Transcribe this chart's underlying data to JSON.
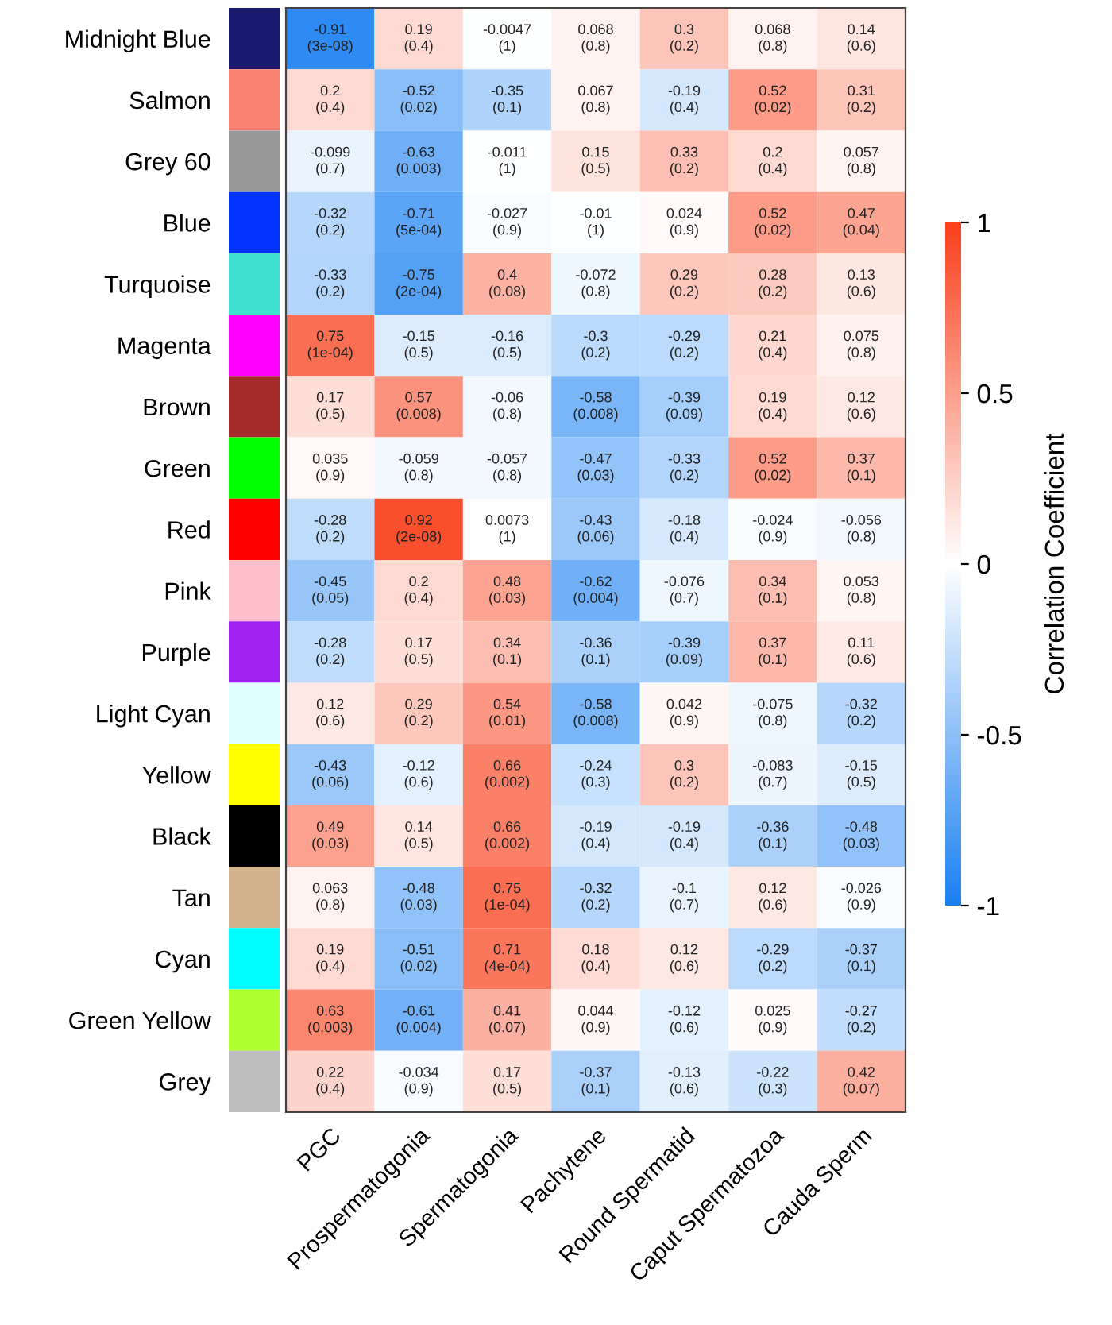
{
  "chart_data": {
    "type": "heatmap",
    "categories": [
      "PGC",
      "Prospermatogonia",
      "Spermatogonia",
      "Pachytene",
      "Round Spermatid",
      "Caput Spermatozoa",
      "Cauda Sperm"
    ],
    "y_categories": [
      "Midnight Blue",
      "Salmon",
      "Grey 60",
      "Blue",
      "Turquoise",
      "Magenta",
      "Brown",
      "Green",
      "Red",
      "Pink",
      "Purple",
      "Light Cyan",
      "Yellow",
      "Black",
      "Tan",
      "Cyan",
      "Green Yellow",
      "Grey"
    ],
    "cells": [
      [
        -0.91,
        0.19,
        -0.0047,
        0.068,
        0.3,
        0.068,
        0.14
      ],
      [
        0.2,
        -0.52,
        -0.35,
        0.067,
        -0.19,
        0.52,
        0.31
      ],
      [
        -0.099,
        -0.63,
        -0.011,
        0.15,
        0.33,
        0.2,
        0.057
      ],
      [
        -0.32,
        -0.71,
        -0.027,
        -0.01,
        0.024,
        0.52,
        0.47
      ],
      [
        -0.33,
        -0.75,
        0.4,
        -0.072,
        0.29,
        0.28,
        0.13
      ],
      [
        0.75,
        -0.15,
        -0.16,
        -0.3,
        -0.29,
        0.21,
        0.075
      ],
      [
        0.17,
        0.57,
        -0.06,
        -0.58,
        -0.39,
        0.19,
        0.12
      ],
      [
        0.035,
        -0.059,
        -0.057,
        -0.47,
        -0.33,
        0.52,
        0.37
      ],
      [
        -0.28,
        0.92,
        0.0073,
        -0.43,
        -0.18,
        -0.024,
        -0.056
      ],
      [
        -0.45,
        0.2,
        0.48,
        -0.62,
        -0.076,
        0.34,
        0.053
      ],
      [
        -0.28,
        0.17,
        0.34,
        -0.36,
        -0.39,
        0.37,
        0.11
      ],
      [
        0.12,
        0.29,
        0.54,
        -0.58,
        0.042,
        -0.075,
        -0.32
      ],
      [
        -0.43,
        -0.12,
        0.66,
        -0.24,
        0.3,
        -0.083,
        -0.15
      ],
      [
        0.49,
        0.14,
        0.66,
        -0.19,
        -0.19,
        -0.36,
        -0.48
      ],
      [
        0.063,
        -0.48,
        0.75,
        -0.32,
        -0.1,
        0.12,
        -0.026
      ],
      [
        0.19,
        -0.51,
        0.71,
        0.18,
        0.12,
        -0.29,
        -0.37
      ],
      [
        0.63,
        -0.61,
        0.41,
        0.044,
        -0.12,
        0.025,
        -0.27
      ],
      [
        0.22,
        -0.034,
        0.17,
        -0.37,
        -0.13,
        -0.22,
        0.42
      ]
    ],
    "cell_labels": [
      [
        "-0.91\n(3e-08)",
        "0.19\n(0.4)",
        "-0.0047\n(1)",
        "0.068\n(0.8)",
        "0.3\n(0.2)",
        "0.068\n(0.8)",
        "0.14\n(0.6)"
      ],
      [
        "0.2\n(0.4)",
        "-0.52\n(0.02)",
        "-0.35\n(0.1)",
        "0.067\n(0.8)",
        "-0.19\n(0.4)",
        "0.52\n(0.02)",
        "0.31\n(0.2)"
      ],
      [
        "-0.099\n(0.7)",
        "-0.63\n(0.003)",
        "-0.011\n(1)",
        "0.15\n(0.5)",
        "0.33\n(0.2)",
        "0.2\n(0.4)",
        "0.057\n(0.8)"
      ],
      [
        "-0.32\n(0.2)",
        "-0.71\n(5e-04)",
        "-0.027\n(0.9)",
        "-0.01\n(1)",
        "0.024\n(0.9)",
        "0.52\n(0.02)",
        "0.47\n(0.04)"
      ],
      [
        "-0.33\n(0.2)",
        "-0.75\n(2e-04)",
        "0.4\n(0.08)",
        "-0.072\n(0.8)",
        "0.29\n(0.2)",
        "0.28\n(0.2)",
        "0.13\n(0.6)"
      ],
      [
        "0.75\n(1e-04)",
        "-0.15\n(0.5)",
        "-0.16\n(0.5)",
        "-0.3\n(0.2)",
        "-0.29\n(0.2)",
        "0.21\n(0.4)",
        "0.075\n(0.8)"
      ],
      [
        "0.17\n(0.5)",
        "0.57\n(0.008)",
        "-0.06\n(0.8)",
        "-0.58\n(0.008)",
        "-0.39\n(0.09)",
        "0.19\n(0.4)",
        "0.12\n(0.6)"
      ],
      [
        "0.035\n(0.9)",
        "-0.059\n(0.8)",
        "-0.057\n(0.8)",
        "-0.47\n(0.03)",
        "-0.33\n(0.2)",
        "0.52\n(0.02)",
        "0.37\n(0.1)"
      ],
      [
        "-0.28\n(0.2)",
        "0.92\n(2e-08)",
        "0.0073\n(1)",
        "-0.43\n(0.06)",
        "-0.18\n(0.4)",
        "-0.024\n(0.9)",
        "-0.056\n(0.8)"
      ],
      [
        "-0.45\n(0.05)",
        "0.2\n(0.4)",
        "0.48\n(0.03)",
        "-0.62\n(0.004)",
        "-0.076\n(0.7)",
        "0.34\n(0.1)",
        "0.053\n(0.8)"
      ],
      [
        "-0.28\n(0.2)",
        "0.17\n(0.5)",
        "0.34\n(0.1)",
        "-0.36\n(0.1)",
        "-0.39\n(0.09)",
        "0.37\n(0.1)",
        "0.11\n(0.6)"
      ],
      [
        "0.12\n(0.6)",
        "0.29\n(0.2)",
        "0.54\n(0.01)",
        "-0.58\n(0.008)",
        "0.042\n(0.9)",
        "-0.075\n(0.8)",
        "-0.32\n(0.2)"
      ],
      [
        "-0.43\n(0.06)",
        "-0.12\n(0.6)",
        "0.66\n(0.002)",
        "-0.24\n(0.3)",
        "0.3\n(0.2)",
        "-0.083\n(0.7)",
        "-0.15\n(0.5)"
      ],
      [
        "0.49\n(0.03)",
        "0.14\n(0.5)",
        "0.66\n(0.002)",
        "-0.19\n(0.4)",
        "-0.19\n(0.4)",
        "-0.36\n(0.1)",
        "-0.48\n(0.03)"
      ],
      [
        "0.063\n(0.8)",
        "-0.48\n(0.03)",
        "0.75\n(1e-04)",
        "-0.32\n(0.2)",
        "-0.1\n(0.7)",
        "0.12\n(0.6)",
        "-0.026\n(0.9)"
      ],
      [
        "0.19\n(0.4)",
        "-0.51\n(0.02)",
        "0.71\n(4e-04)",
        "0.18\n(0.4)",
        "0.12\n(0.6)",
        "-0.29\n(0.2)",
        "-0.37\n(0.1)"
      ],
      [
        "0.63\n(0.003)",
        "-0.61\n(0.004)",
        "0.41\n(0.07)",
        "0.044\n(0.9)",
        "-0.12\n(0.6)",
        "0.025\n(0.9)",
        "-0.27\n(0.2)"
      ],
      [
        "0.22\n(0.4)",
        "-0.034\n(0.9)",
        "0.17\n(0.5)",
        "-0.37\n(0.1)",
        "-0.13\n(0.6)",
        "-0.22\n(0.3)",
        "0.42\n(0.07)"
      ]
    ],
    "clim": [
      -1,
      1
    ],
    "cticks": [
      -1,
      -0.5,
      0,
      0.5,
      1
    ],
    "clabel": "Correlation Coefficient"
  }
}
